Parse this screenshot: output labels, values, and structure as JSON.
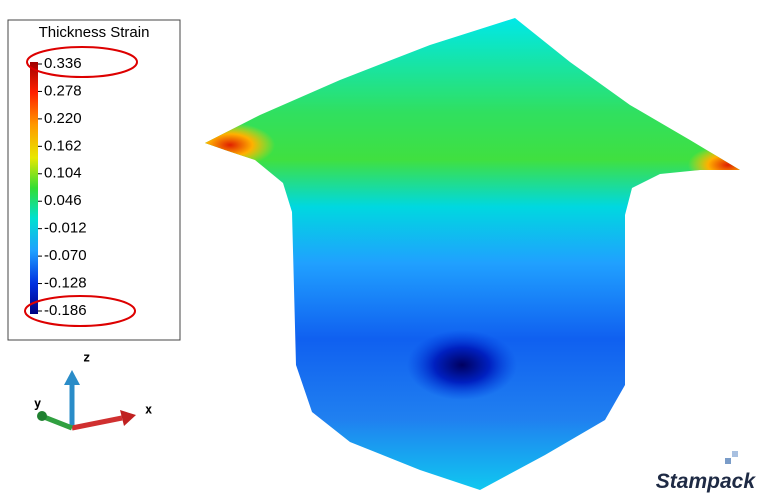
{
  "legend": {
    "title": "Thickness Strain",
    "labels": [
      "0.336",
      "0.278",
      "0.220",
      "0.162",
      "0.104",
      "0.046",
      "-0.012",
      "-0.070",
      "-0.128",
      "-0.186"
    ]
  },
  "axes": {
    "z": "z",
    "y": "y",
    "x": "x"
  },
  "logo": "Stampack"
}
